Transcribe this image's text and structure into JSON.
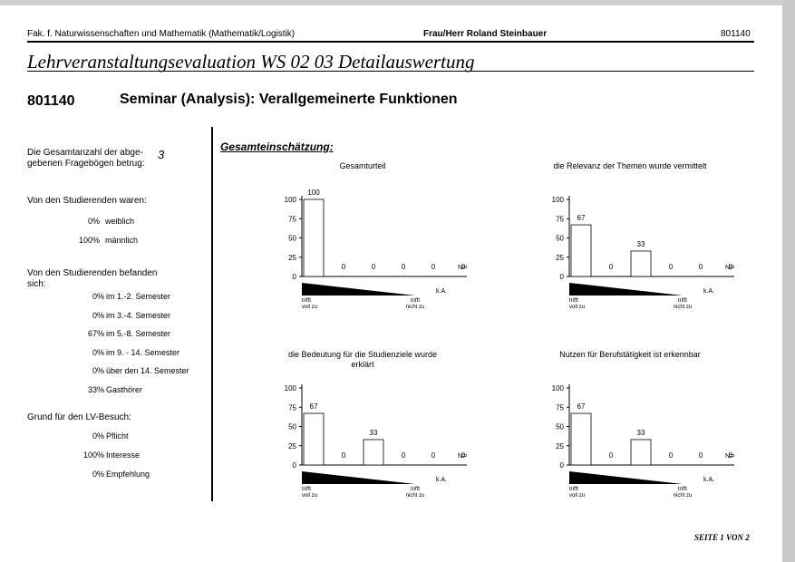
{
  "header": {
    "faculty": "Fak. f. Naturwissenschaften und Mathematik (Mathematik/Logistik)",
    "lecturer": "Frau/Herr Roland Steinbauer",
    "code": "801140"
  },
  "title": "Lehrveranstaltungsevaluation WS 02 03 Detailauswertung",
  "course": {
    "code": "801140",
    "name": "Seminar (Analysis): Verallgemeinerte Funktionen"
  },
  "stats": {
    "total_label": "Die Gesamtanzahl der abge-gebenen Fragebögen betrug:",
    "total_line1": "Die Gesamtanzahl der abge-",
    "total_line2": "gebenen Fragebögen betrug:",
    "total_value": "3",
    "gender_label": "Von den Studierenden waren:",
    "gender": [
      {
        "pct": "0%",
        "label": "weiblich"
      },
      {
        "pct": "100%",
        "label": "männlich"
      }
    ],
    "semester_label_line1": "Von den Studierenden befanden",
    "semester_label_line2": "sich:",
    "semester": [
      {
        "pct": "0%",
        "label": "im 1.-2. Semester"
      },
      {
        "pct": "0%",
        "label": "im 3.-4. Semester"
      },
      {
        "pct": "67%",
        "label": "im 5.-8. Semester"
      },
      {
        "pct": "0%",
        "label": "im 9. - 14. Semester"
      },
      {
        "pct": "0%",
        "label": "über den 14. Semester"
      },
      {
        "pct": "33%",
        "label": "Gasthörer"
      }
    ],
    "reason_label": "Grund für den LV-Besuch:",
    "reason": [
      {
        "pct": "0%",
        "label": "Pflicht"
      },
      {
        "pct": "100%",
        "label": "Interesse"
      },
      {
        "pct": "0%",
        "label": "Empfehlung"
      }
    ]
  },
  "section_title": "Gesamteinschätzung:",
  "footer": "SEITE 1 VON 2",
  "chart_data": [
    {
      "type": "bar",
      "title": "Gesamturteil",
      "values": [
        100,
        0,
        0,
        0,
        0,
        0
      ],
      "yticks": [
        "100",
        "75",
        "50",
        "25",
        "0"
      ],
      "ylim": [
        0,
        100
      ],
      "n_label": "N=0",
      "ka_label": "k.A.",
      "left_label": [
        "trifft",
        "voll zu"
      ],
      "right_label": [
        "trifft",
        "nicht zu"
      ]
    },
    {
      "type": "bar",
      "title": "die Relevanz der Themen wurde vermittelt",
      "values": [
        67,
        0,
        33,
        0,
        0,
        0
      ],
      "yticks": [
        "100",
        "75",
        "50",
        "25",
        "0"
      ],
      "ylim": [
        0,
        100
      ],
      "n_label": "N=0",
      "ka_label": "k.A.",
      "left_label": [
        "trifft",
        "voll zu"
      ],
      "right_label": [
        "trifft",
        "nicht zu"
      ]
    },
    {
      "type": "bar",
      "title": "die Bedeutung für die Studienziele wurde erklärt",
      "title_lines": [
        "die Bedeutung für die Studienziele wurde",
        "erklärt"
      ],
      "values": [
        67,
        0,
        33,
        0,
        0,
        0
      ],
      "yticks": [
        "100",
        "75",
        "50",
        "25",
        "0"
      ],
      "ylim": [
        0,
        100
      ],
      "n_label": "N=0",
      "ka_label": "k.A.",
      "left_label": [
        "trifft",
        "voll zu"
      ],
      "right_label": [
        "trifft",
        "nicht zu"
      ]
    },
    {
      "type": "bar",
      "title": "Nutzen für Berufstätigkeit ist erkennbar",
      "values": [
        67,
        0,
        33,
        0,
        0,
        0
      ],
      "yticks": [
        "100",
        "75",
        "50",
        "25",
        "0"
      ],
      "ylim": [
        0,
        100
      ],
      "n_label": "N=0",
      "ka_label": "k.A.",
      "left_label": [
        "trifft",
        "voll zu"
      ],
      "right_label": [
        "trifft",
        "nicht zu"
      ]
    }
  ]
}
